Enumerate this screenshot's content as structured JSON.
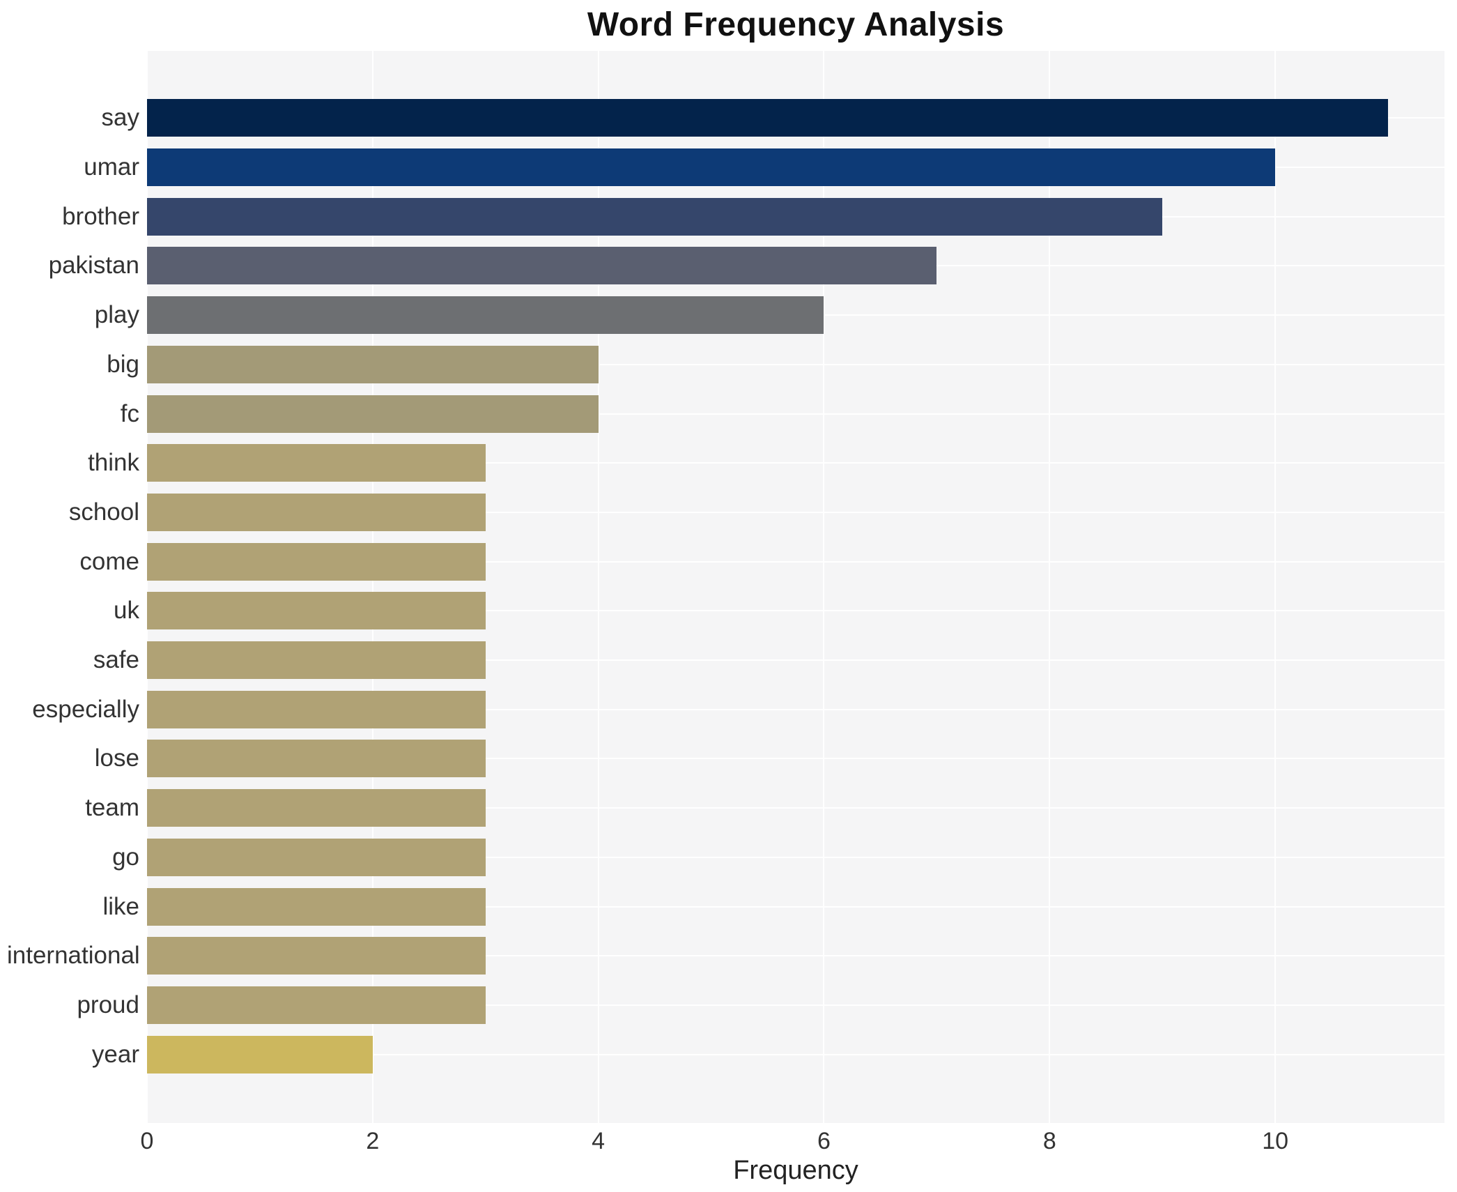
{
  "title": "Word Frequency Analysis",
  "chart_data": {
    "type": "bar",
    "orientation": "horizontal",
    "title": "Word Frequency Analysis",
    "xlabel": "Frequency",
    "ylabel": "",
    "categories": [
      "say",
      "umar",
      "brother",
      "pakistan",
      "play",
      "big",
      "fc",
      "think",
      "school",
      "come",
      "uk",
      "safe",
      "especially",
      "lose",
      "team",
      "go",
      "like",
      "international",
      "proud",
      "year"
    ],
    "values": [
      11,
      10,
      9,
      7,
      6,
      4,
      4,
      3,
      3,
      3,
      3,
      3,
      3,
      3,
      3,
      3,
      3,
      3,
      3,
      2
    ],
    "bar_colors": [
      "#03234b",
      "#0d3a76",
      "#35466b",
      "#5a5f70",
      "#6d6f72",
      "#a39a77",
      "#a39a77",
      "#b0a275",
      "#b0a275",
      "#b0a275",
      "#b0a275",
      "#b0a275",
      "#b0a275",
      "#b0a275",
      "#b0a275",
      "#b0a275",
      "#b0a275",
      "#b0a275",
      "#b0a275",
      "#ccb75e"
    ],
    "xticks": [
      0,
      2,
      4,
      6,
      8,
      10
    ],
    "xlim": [
      0,
      11.5
    ],
    "grid": true,
    "legend_position": "none",
    "plot_background": "#f5f5f6",
    "gridline_color": "#ffffff"
  }
}
